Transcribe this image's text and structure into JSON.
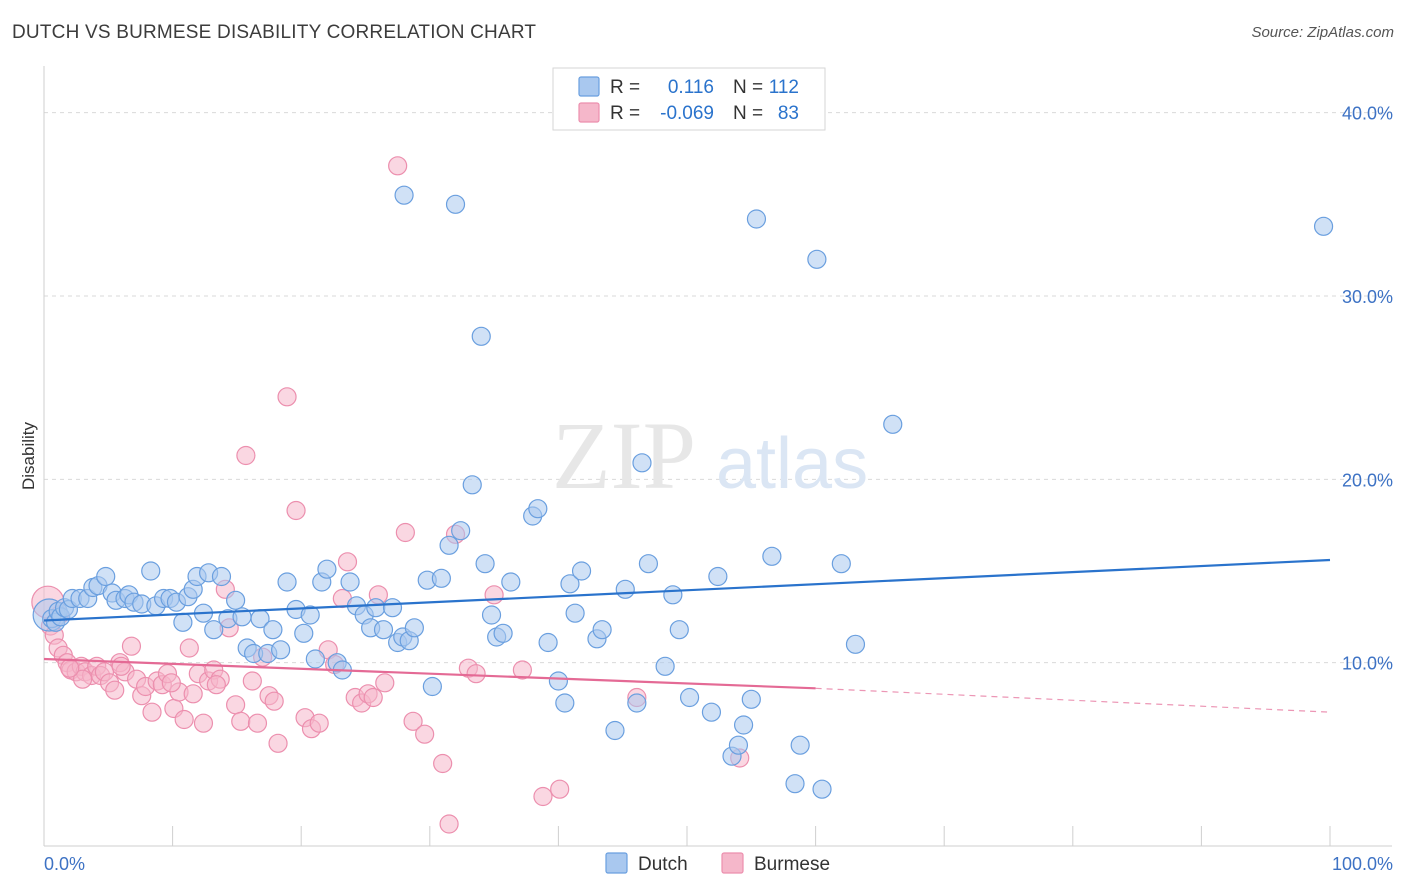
{
  "title": "DUTCH VS BURMESE DISABILITY CORRELATION CHART",
  "source": "Source: ZipAtlas.com",
  "watermark": {
    "part1": "ZIP",
    "part2": "atlas"
  },
  "legend_box": {
    "rows": [
      {
        "r_label": "R =",
        "r_value": "0.116",
        "n_label": "N =",
        "n_value": "112"
      },
      {
        "r_label": "R =",
        "r_value": "-0.069",
        "n_label": "N =",
        "n_value": "83"
      }
    ]
  },
  "colors": {
    "dutch_fill": "#a9c8ef",
    "dutch_stroke": "#6a9fdf",
    "dutch_line": "#2a73cc",
    "burmese_fill": "#f5b7ca",
    "burmese_stroke": "#ec8fae",
    "burmese_line": "#e46a95",
    "grid": "#d9d9d9",
    "value_text": "#2a73cc",
    "label_text": "#333333"
  },
  "chart_data": {
    "type": "scatter",
    "title": "DUTCH VS BURMESE DISABILITY CORRELATION CHART",
    "xlabel": "",
    "ylabel": "Disability",
    "xlim": [
      0,
      100
    ],
    "ylim": [
      0,
      42
    ],
    "x_tick_labels": [
      "0.0%",
      "100.0%"
    ],
    "y_ticks": [
      10,
      20,
      30,
      40
    ],
    "y_tick_labels": [
      "10.0%",
      "20.0%",
      "30.0%",
      "40.0%"
    ],
    "grid": true,
    "legend_position": "bottom-center",
    "series": [
      {
        "name": "Dutch",
        "R": 0.116,
        "N": 112,
        "trend": {
          "x": [
            0,
            100
          ],
          "y": [
            12.3,
            15.6
          ]
        },
        "points": [
          [
            0.4,
            12.6
          ],
          [
            0.6,
            12.4
          ],
          [
            0.9,
            12.2
          ],
          [
            1.1,
            12.8
          ],
          [
            1.3,
            12.5
          ],
          [
            1.6,
            13.0
          ],
          [
            1.9,
            12.9
          ],
          [
            2.2,
            13.5
          ],
          [
            2.8,
            13.5
          ],
          [
            3.4,
            13.5
          ],
          [
            3.8,
            14.1
          ],
          [
            4.2,
            14.2
          ],
          [
            4.8,
            14.7
          ],
          [
            5.3,
            13.8
          ],
          [
            5.6,
            13.4
          ],
          [
            6.3,
            13.5
          ],
          [
            6.6,
            13.7
          ],
          [
            7.0,
            13.3
          ],
          [
            7.6,
            13.2
          ],
          [
            8.3,
            15.0
          ],
          [
            8.7,
            13.1
          ],
          [
            9.3,
            13.5
          ],
          [
            9.8,
            13.5
          ],
          [
            10.3,
            13.3
          ],
          [
            10.8,
            12.2
          ],
          [
            11.2,
            13.6
          ],
          [
            11.6,
            14.0
          ],
          [
            11.9,
            14.7
          ],
          [
            12.4,
            12.7
          ],
          [
            12.8,
            14.9
          ],
          [
            13.2,
            11.8
          ],
          [
            13.8,
            14.7
          ],
          [
            14.3,
            12.4
          ],
          [
            14.9,
            13.4
          ],
          [
            15.4,
            12.5
          ],
          [
            15.8,
            10.8
          ],
          [
            16.3,
            10.5
          ],
          [
            16.8,
            12.4
          ],
          [
            17.4,
            10.5
          ],
          [
            17.8,
            11.8
          ],
          [
            18.4,
            10.7
          ],
          [
            18.9,
            14.4
          ],
          [
            19.6,
            12.9
          ],
          [
            20.2,
            11.6
          ],
          [
            20.7,
            12.6
          ],
          [
            21.1,
            10.2
          ],
          [
            21.6,
            14.4
          ],
          [
            22.0,
            15.1
          ],
          [
            22.8,
            10.0
          ],
          [
            23.2,
            9.6
          ],
          [
            23.8,
            14.4
          ],
          [
            24.3,
            13.1
          ],
          [
            24.9,
            12.6
          ],
          [
            25.4,
            11.9
          ],
          [
            25.8,
            13.0
          ],
          [
            26.4,
            11.8
          ],
          [
            27.1,
            13.0
          ],
          [
            27.5,
            11.1
          ],
          [
            27.9,
            11.4
          ],
          [
            28.4,
            11.2
          ],
          [
            28.8,
            11.9
          ],
          [
            29.8,
            14.5
          ],
          [
            30.2,
            8.7
          ],
          [
            30.9,
            14.6
          ],
          [
            31.5,
            16.4
          ],
          [
            32.4,
            17.2
          ],
          [
            33.3,
            19.7
          ],
          [
            34.3,
            15.4
          ],
          [
            34.8,
            12.6
          ],
          [
            35.2,
            11.4
          ],
          [
            35.7,
            11.6
          ],
          [
            36.3,
            14.4
          ],
          [
            28.0,
            35.5
          ],
          [
            32.0,
            35.0
          ],
          [
            34.0,
            27.8
          ],
          [
            38.0,
            18.0
          ],
          [
            38.4,
            18.4
          ],
          [
            39.2,
            11.1
          ],
          [
            40.0,
            9.0
          ],
          [
            40.5,
            7.8
          ],
          [
            40.9,
            14.3
          ],
          [
            41.3,
            12.7
          ],
          [
            41.8,
            15.0
          ],
          [
            43.0,
            11.3
          ],
          [
            43.4,
            11.8
          ],
          [
            44.4,
            6.3
          ],
          [
            45.2,
            14.0
          ],
          [
            46.1,
            7.8
          ],
          [
            46.5,
            20.9
          ],
          [
            47.0,
            15.4
          ],
          [
            48.3,
            9.8
          ],
          [
            48.9,
            13.7
          ],
          [
            49.4,
            11.8
          ],
          [
            50.2,
            8.1
          ],
          [
            51.9,
            7.3
          ],
          [
            52.4,
            14.7
          ],
          [
            53.5,
            4.9
          ],
          [
            54.0,
            5.5
          ],
          [
            54.4,
            6.6
          ],
          [
            55.0,
            8.0
          ],
          [
            55.4,
            34.2
          ],
          [
            56.6,
            15.8
          ],
          [
            58.4,
            3.4
          ],
          [
            58.8,
            5.5
          ],
          [
            60.1,
            32.0
          ],
          [
            60.5,
            3.1
          ],
          [
            62.0,
            15.4
          ],
          [
            63.1,
            11.0
          ],
          [
            66.0,
            23.0
          ],
          [
            99.5,
            33.8
          ]
        ]
      },
      {
        "name": "Burmese",
        "R": -0.069,
        "N": 83,
        "trend": {
          "x": [
            0,
            60
          ],
          "y": [
            10.2,
            8.6
          ]
        },
        "trend_dashed": {
          "x": [
            60,
            100
          ],
          "y": [
            8.6,
            7.3
          ]
        },
        "points": [
          [
            0.3,
            13.3
          ],
          [
            0.5,
            12.0
          ],
          [
            0.8,
            11.5
          ],
          [
            1.1,
            10.8
          ],
          [
            1.5,
            10.4
          ],
          [
            1.8,
            10.0
          ],
          [
            2.1,
            9.6
          ],
          [
            2.5,
            9.5
          ],
          [
            2.9,
            9.8
          ],
          [
            3.2,
            9.5
          ],
          [
            3.7,
            9.3
          ],
          [
            4.1,
            9.8
          ],
          [
            4.4,
            9.3
          ],
          [
            4.7,
            9.5
          ],
          [
            5.1,
            8.9
          ],
          [
            5.5,
            8.5
          ],
          [
            5.9,
            10.0
          ],
          [
            6.3,
            9.5
          ],
          [
            6.8,
            10.9
          ],
          [
            7.2,
            9.1
          ],
          [
            7.6,
            8.2
          ],
          [
            7.9,
            8.7
          ],
          [
            8.4,
            7.3
          ],
          [
            8.8,
            9.0
          ],
          [
            9.2,
            8.8
          ],
          [
            9.6,
            9.4
          ],
          [
            10.1,
            7.5
          ],
          [
            10.5,
            8.4
          ],
          [
            10.9,
            6.9
          ],
          [
            11.3,
            10.8
          ],
          [
            11.6,
            8.3
          ],
          [
            12.0,
            9.4
          ],
          [
            12.4,
            6.7
          ],
          [
            12.8,
            9.0
          ],
          [
            13.2,
            9.6
          ],
          [
            13.7,
            9.1
          ],
          [
            14.1,
            14.0
          ],
          [
            14.4,
            11.9
          ],
          [
            14.9,
            7.7
          ],
          [
            15.3,
            6.8
          ],
          [
            15.7,
            21.3
          ],
          [
            16.2,
            9.0
          ],
          [
            16.6,
            6.7
          ],
          [
            17.0,
            10.3
          ],
          [
            17.5,
            8.2
          ],
          [
            17.9,
            7.9
          ],
          [
            18.2,
            5.6
          ],
          [
            18.9,
            24.5
          ],
          [
            19.6,
            18.3
          ],
          [
            20.3,
            7.0
          ],
          [
            20.8,
            6.4
          ],
          [
            21.4,
            6.7
          ],
          [
            22.1,
            10.7
          ],
          [
            22.6,
            9.9
          ],
          [
            23.2,
            13.5
          ],
          [
            23.6,
            15.5
          ],
          [
            24.2,
            8.1
          ],
          [
            24.7,
            7.8
          ],
          [
            25.2,
            8.3
          ],
          [
            25.6,
            8.1
          ],
          [
            26.0,
            13.7
          ],
          [
            26.5,
            8.9
          ],
          [
            27.5,
            37.1
          ],
          [
            28.1,
            17.1
          ],
          [
            28.7,
            6.8
          ],
          [
            29.6,
            6.1
          ],
          [
            31.0,
            4.5
          ],
          [
            31.5,
            1.2
          ],
          [
            32.0,
            17.0
          ],
          [
            33.0,
            9.7
          ],
          [
            33.6,
            9.4
          ],
          [
            35.0,
            13.7
          ],
          [
            37.2,
            9.6
          ],
          [
            38.8,
            2.7
          ],
          [
            40.1,
            3.1
          ],
          [
            46.1,
            8.1
          ],
          [
            54.1,
            4.8
          ],
          [
            13.4,
            8.8
          ],
          [
            9.9,
            8.9
          ],
          [
            6.0,
            9.8
          ],
          [
            3.0,
            9.1
          ],
          [
            2.0,
            9.7
          ],
          [
            1.2,
            12.6
          ]
        ]
      }
    ]
  }
}
